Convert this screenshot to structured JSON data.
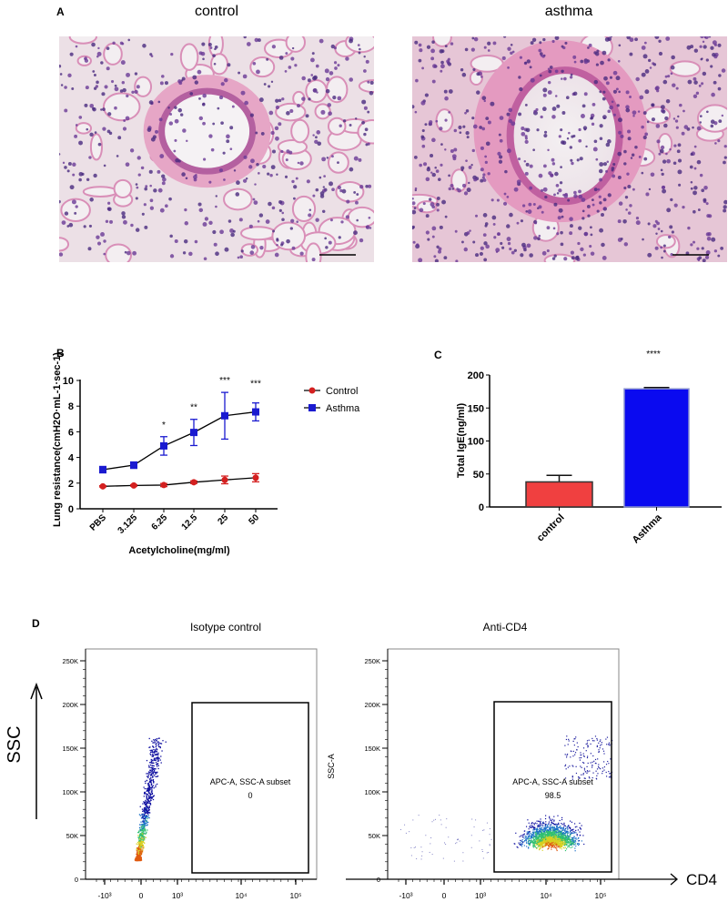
{
  "panel_a": {
    "label": "A",
    "images": [
      {
        "title": "control",
        "caption": "H&E lung section, control"
      },
      {
        "title": "asthma",
        "caption": "H&E lung section, asthma"
      }
    ]
  },
  "chart_data": [
    {
      "panel": "B",
      "type": "line",
      "title": "",
      "xlabel": "Acetylcholine(mg/ml)",
      "ylabel": "Lung resistance(cmH2O·mL-1·sec-1)",
      "ylim": [
        0,
        10
      ],
      "yticks": [
        0,
        2,
        4,
        6,
        8,
        10
      ],
      "categories": [
        "PBS",
        "3.125",
        "6.25",
        "12.5",
        "25",
        "50"
      ],
      "legend_position": "right",
      "series": [
        {
          "name": "Control",
          "color": "#d42020",
          "marker": "circle",
          "values": [
            1.75,
            1.82,
            1.85,
            2.07,
            2.25,
            2.42
          ],
          "errors": [
            0.05,
            0.06,
            0.12,
            0.1,
            0.3,
            0.32
          ]
        },
        {
          "name": "Asthma",
          "color": "#1a1ad0",
          "marker": "square",
          "values": [
            3.05,
            3.4,
            4.9,
            5.95,
            7.25,
            7.55
          ],
          "errors": [
            0.25,
            0.25,
            0.72,
            1.02,
            1.82,
            0.7
          ]
        }
      ],
      "significance": [
        "",
        "",
        "*",
        "**",
        "***",
        "***"
      ]
    },
    {
      "panel": "C",
      "type": "bar",
      "title": "",
      "xlabel": "",
      "ylabel": "Total IgE(ng/ml)",
      "ylim": [
        0,
        200
      ],
      "yticks": [
        0,
        50,
        100,
        150,
        200
      ],
      "categories": [
        "control",
        "Asthma"
      ],
      "values": [
        38,
        179
      ],
      "errors": [
        10,
        2
      ],
      "colors": [
        "#f04040",
        "#0a0af0"
      ],
      "significance": "****"
    },
    {
      "panel": "D",
      "type": "scatter",
      "plots": [
        {
          "title": "Isotype control",
          "gate_label": "APC-A, SSC-A subset",
          "gate_value": "0"
        },
        {
          "title": "Anti-CD4",
          "gate_label": "APC-A, SSC-A subset",
          "gate_value": "98.5"
        }
      ],
      "yticks": [
        "0",
        "50K",
        "100K",
        "150K",
        "200K",
        "250K"
      ],
      "xticks": [
        "-10^3",
        "0",
        "10^3",
        "10^4",
        "10^5"
      ],
      "ylabel_outer": "SSC",
      "ylabel_inner": "SSC-A",
      "xlabel": "CD4"
    }
  ],
  "panel_labels": {
    "b": "B",
    "c": "C",
    "d": "D"
  }
}
